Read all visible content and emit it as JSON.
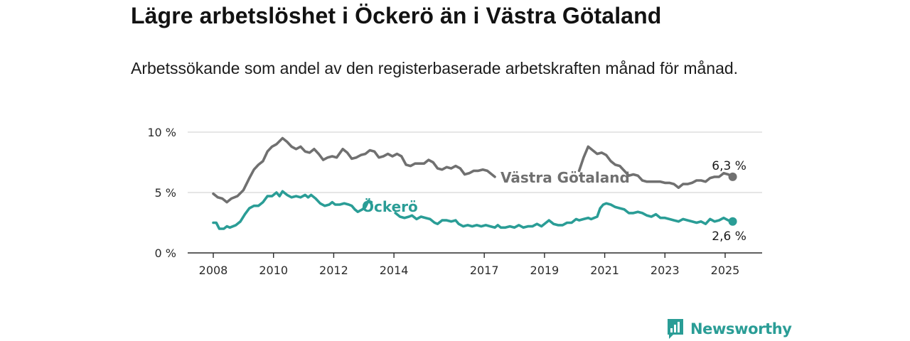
{
  "header": {
    "title": "Lägre arbetslöshet i Öckerö än i Västra Götaland",
    "subtitle": "Arbetssökande som andel av den registerbaserade arbetskraften månad för månad."
  },
  "brand": {
    "name": "Newsworthy",
    "icon": "bar-chart-speech-bubble-icon",
    "color": "#2a9d96"
  },
  "chart_data": {
    "type": "line",
    "ylim": [
      0,
      10
    ],
    "yticks": [
      {
        "value": 0,
        "label": "0 %"
      },
      {
        "value": 5,
        "label": "5 %"
      },
      {
        "value": 10,
        "label": "10 %"
      }
    ],
    "xlim": [
      2008,
      2026
    ],
    "xticks": [
      {
        "value": 2008,
        "label": "2008"
      },
      {
        "value": 2010,
        "label": "2010"
      },
      {
        "value": 2012,
        "label": "2012"
      },
      {
        "value": 2014,
        "label": "2014"
      },
      {
        "value": 2017,
        "label": "2017"
      },
      {
        "value": 2019,
        "label": "2019"
      },
      {
        "value": 2021,
        "label": "2021"
      },
      {
        "value": 2023,
        "label": "2023"
      },
      {
        "value": 2025,
        "label": "2025"
      }
    ],
    "grid": true,
    "series": [
      {
        "name": "Västra Götaland",
        "color": "#707070",
        "end_label": "6,3 %",
        "points": [
          [
            2008.0,
            4.9
          ],
          [
            2008.15,
            4.6
          ],
          [
            2008.3,
            4.5
          ],
          [
            2008.45,
            4.2
          ],
          [
            2008.6,
            4.5
          ],
          [
            2008.8,
            4.7
          ],
          [
            2009.0,
            5.2
          ],
          [
            2009.2,
            6.2
          ],
          [
            2009.35,
            6.9
          ],
          [
            2009.5,
            7.3
          ],
          [
            2009.65,
            7.6
          ],
          [
            2009.8,
            8.4
          ],
          [
            2009.95,
            8.8
          ],
          [
            2010.1,
            9.0
          ],
          [
            2010.3,
            9.5
          ],
          [
            2010.45,
            9.2
          ],
          [
            2010.6,
            8.8
          ],
          [
            2010.75,
            8.6
          ],
          [
            2010.9,
            8.8
          ],
          [
            2011.05,
            8.4
          ],
          [
            2011.2,
            8.3
          ],
          [
            2011.35,
            8.6
          ],
          [
            2011.5,
            8.2
          ],
          [
            2011.65,
            7.7
          ],
          [
            2011.8,
            7.9
          ],
          [
            2011.95,
            8.0
          ],
          [
            2012.1,
            7.9
          ],
          [
            2012.3,
            8.6
          ],
          [
            2012.45,
            8.3
          ],
          [
            2012.6,
            7.8
          ],
          [
            2012.75,
            7.9
          ],
          [
            2012.9,
            8.1
          ],
          [
            2013.05,
            8.2
          ],
          [
            2013.2,
            8.5
          ],
          [
            2013.35,
            8.4
          ],
          [
            2013.5,
            7.9
          ],
          [
            2013.65,
            8.0
          ],
          [
            2013.8,
            8.2
          ],
          [
            2013.95,
            8.0
          ],
          [
            2014.1,
            8.2
          ],
          [
            2014.25,
            8.0
          ],
          [
            2014.4,
            7.3
          ],
          [
            2014.55,
            7.2
          ],
          [
            2014.7,
            7.4
          ],
          [
            2014.85,
            7.4
          ],
          [
            2015.0,
            7.4
          ],
          [
            2015.15,
            7.7
          ],
          [
            2015.3,
            7.5
          ],
          [
            2015.45,
            7.0
          ],
          [
            2015.6,
            6.9
          ],
          [
            2015.75,
            7.1
          ],
          [
            2015.9,
            7.0
          ],
          [
            2016.05,
            7.2
          ],
          [
            2016.2,
            7.0
          ],
          [
            2016.35,
            6.5
          ],
          [
            2016.5,
            6.6
          ],
          [
            2016.65,
            6.8
          ],
          [
            2016.8,
            6.8
          ],
          [
            2016.95,
            6.9
          ],
          [
            2017.1,
            6.8
          ],
          [
            2017.25,
            6.5
          ],
          [
            2017.35,
            6.3
          ],
          null,
          [
            2020.15,
            6.8
          ],
          [
            2020.3,
            7.9
          ],
          [
            2020.45,
            8.8
          ],
          [
            2020.6,
            8.5
          ],
          [
            2020.75,
            8.2
          ],
          [
            2020.9,
            8.3
          ],
          [
            2021.05,
            8.1
          ],
          [
            2021.2,
            7.6
          ],
          [
            2021.35,
            7.3
          ],
          [
            2021.5,
            7.2
          ],
          [
            2021.65,
            6.8
          ],
          [
            2021.8,
            6.4
          ],
          [
            2021.95,
            6.5
          ],
          [
            2022.1,
            6.4
          ],
          [
            2022.25,
            6.0
          ],
          [
            2022.4,
            5.9
          ],
          [
            2022.55,
            5.9
          ],
          [
            2022.7,
            5.9
          ],
          [
            2022.85,
            5.9
          ],
          [
            2023.0,
            5.8
          ],
          [
            2023.15,
            5.8
          ],
          [
            2023.3,
            5.7
          ],
          [
            2023.45,
            5.4
          ],
          [
            2023.6,
            5.7
          ],
          [
            2023.75,
            5.7
          ],
          [
            2023.9,
            5.8
          ],
          [
            2024.05,
            6.0
          ],
          [
            2024.2,
            6.0
          ],
          [
            2024.35,
            5.9
          ],
          [
            2024.5,
            6.2
          ],
          [
            2024.65,
            6.3
          ],
          [
            2024.8,
            6.3
          ],
          [
            2024.95,
            6.6
          ],
          [
            2025.1,
            6.5
          ],
          [
            2025.25,
            6.3
          ]
        ]
      },
      {
        "name": "Öckerö",
        "color": "#2a9d96",
        "end_label": "2,6 %",
        "points": [
          [
            2008.0,
            2.5
          ],
          [
            2008.1,
            2.5
          ],
          [
            2008.2,
            2.0
          ],
          [
            2008.35,
            2.0
          ],
          [
            2008.45,
            2.2
          ],
          [
            2008.55,
            2.1
          ],
          [
            2008.75,
            2.3
          ],
          [
            2008.9,
            2.6
          ],
          [
            2009.05,
            3.2
          ],
          [
            2009.2,
            3.7
          ],
          [
            2009.35,
            3.9
          ],
          [
            2009.5,
            3.9
          ],
          [
            2009.65,
            4.2
          ],
          [
            2009.8,
            4.7
          ],
          [
            2009.95,
            4.7
          ],
          [
            2010.1,
            5.0
          ],
          [
            2010.2,
            4.7
          ],
          [
            2010.3,
            5.1
          ],
          [
            2010.45,
            4.8
          ],
          [
            2010.6,
            4.6
          ],
          [
            2010.75,
            4.7
          ],
          [
            2010.9,
            4.6
          ],
          [
            2011.05,
            4.8
          ],
          [
            2011.15,
            4.6
          ],
          [
            2011.25,
            4.8
          ],
          [
            2011.4,
            4.5
          ],
          [
            2011.55,
            4.1
          ],
          [
            2011.7,
            3.9
          ],
          [
            2011.85,
            4.0
          ],
          [
            2011.95,
            4.2
          ],
          [
            2012.05,
            4.0
          ],
          [
            2012.2,
            4.0
          ],
          [
            2012.35,
            4.1
          ],
          [
            2012.5,
            4.0
          ],
          [
            2012.6,
            3.9
          ],
          [
            2012.7,
            3.6
          ],
          [
            2012.8,
            3.4
          ],
          [
            2012.95,
            3.6
          ],
          [
            2013.05,
            3.8
          ],
          [
            2013.15,
            4.3
          ],
          [
            2013.25,
            4.2
          ],
          null,
          [
            2014.05,
            3.3
          ],
          [
            2014.2,
            3.0
          ],
          [
            2014.35,
            2.9
          ],
          [
            2014.5,
            3.0
          ],
          [
            2014.6,
            3.1
          ],
          [
            2014.75,
            2.8
          ],
          [
            2014.9,
            3.0
          ],
          [
            2015.05,
            2.9
          ],
          [
            2015.2,
            2.8
          ],
          [
            2015.35,
            2.5
          ],
          [
            2015.45,
            2.4
          ],
          [
            2015.6,
            2.7
          ],
          [
            2015.75,
            2.7
          ],
          [
            2015.9,
            2.6
          ],
          [
            2016.05,
            2.7
          ],
          [
            2016.15,
            2.4
          ],
          [
            2016.3,
            2.2
          ],
          [
            2016.45,
            2.3
          ],
          [
            2016.6,
            2.2
          ],
          [
            2016.75,
            2.3
          ],
          [
            2016.9,
            2.2
          ],
          [
            2017.05,
            2.3
          ],
          [
            2017.2,
            2.2
          ],
          [
            2017.35,
            2.1
          ],
          [
            2017.45,
            2.3
          ],
          [
            2017.55,
            2.1
          ],
          [
            2017.7,
            2.1
          ],
          [
            2017.85,
            2.2
          ],
          [
            2018.0,
            2.1
          ],
          [
            2018.15,
            2.3
          ],
          [
            2018.3,
            2.1
          ],
          [
            2018.45,
            2.2
          ],
          [
            2018.6,
            2.2
          ],
          [
            2018.75,
            2.4
          ],
          [
            2018.9,
            2.2
          ],
          [
            2019.05,
            2.5
          ],
          [
            2019.15,
            2.7
          ],
          [
            2019.3,
            2.4
          ],
          [
            2019.45,
            2.3
          ],
          [
            2019.6,
            2.3
          ],
          [
            2019.75,
            2.5
          ],
          [
            2019.9,
            2.5
          ],
          [
            2020.05,
            2.8
          ],
          [
            2020.15,
            2.7
          ],
          [
            2020.3,
            2.8
          ],
          [
            2020.45,
            2.9
          ],
          [
            2020.55,
            2.8
          ],
          [
            2020.65,
            2.9
          ],
          [
            2020.75,
            3.0
          ],
          [
            2020.85,
            3.7
          ],
          [
            2020.95,
            4.0
          ],
          [
            2021.05,
            4.1
          ],
          [
            2021.2,
            4.0
          ],
          [
            2021.35,
            3.8
          ],
          [
            2021.5,
            3.7
          ],
          [
            2021.65,
            3.6
          ],
          [
            2021.8,
            3.3
          ],
          [
            2021.95,
            3.3
          ],
          [
            2022.1,
            3.4
          ],
          [
            2022.25,
            3.3
          ],
          [
            2022.4,
            3.1
          ],
          [
            2022.55,
            3.0
          ],
          [
            2022.7,
            3.2
          ],
          [
            2022.85,
            2.9
          ],
          [
            2023.0,
            2.9
          ],
          [
            2023.15,
            2.8
          ],
          [
            2023.3,
            2.7
          ],
          [
            2023.45,
            2.6
          ],
          [
            2023.6,
            2.8
          ],
          [
            2023.75,
            2.7
          ],
          [
            2023.9,
            2.6
          ],
          [
            2024.05,
            2.5
          ],
          [
            2024.2,
            2.6
          ],
          [
            2024.35,
            2.4
          ],
          [
            2024.5,
            2.8
          ],
          [
            2024.65,
            2.6
          ],
          [
            2024.8,
            2.7
          ],
          [
            2024.95,
            2.9
          ],
          [
            2025.1,
            2.7
          ],
          [
            2025.25,
            2.6
          ]
        ]
      }
    ]
  }
}
